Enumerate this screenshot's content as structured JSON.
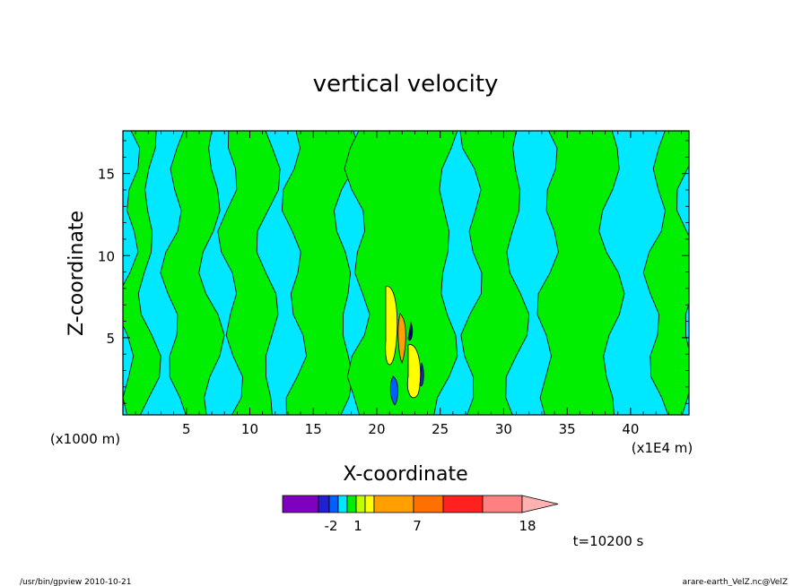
{
  "chart_data": {
    "type": "heatmap",
    "title": "vertical velocity",
    "xlabel": "X-coordinate",
    "ylabel": "Z-coordinate",
    "x_unit_left": "(x1000 m)",
    "x_unit_right": "(x1E4 m)",
    "x_ticks": [
      "5",
      "10",
      "15",
      "20",
      "25",
      "30",
      "35",
      "40"
    ],
    "x_tick_values": [
      5,
      10,
      15,
      20,
      25,
      30,
      35,
      40
    ],
    "y_ticks": [
      "5",
      "10",
      "15"
    ],
    "y_tick_values": [
      5,
      10,
      15
    ],
    "xlim": [
      0,
      44.6
    ],
    "ylim": [
      0.3,
      17.6
    ],
    "background_level_color": "#00e8ff",
    "updraft_color": "#00ee00",
    "updraft_bands": [
      {
        "x0": 0.5,
        "x1": 2.0
      },
      {
        "x0": 4.0,
        "x1": 7.0
      },
      {
        "x0": 8.5,
        "x1": 11.5
      },
      {
        "x0": 13.5,
        "x1": 17.5
      },
      {
        "x0": 18.5,
        "x1": 25.5
      },
      {
        "x0": 27.5,
        "x1": 31.0
      },
      {
        "x0": 33.5,
        "x1": 38.5
      },
      {
        "x0": 42.0,
        "x1": 44.6
      }
    ],
    "colorbar": {
      "colors": [
        "#8000c0",
        "#2020d0",
        "#0060ff",
        "#00e8ff",
        "#00ee00",
        "#c0ff00",
        "#ffff00",
        "#ffa000",
        "#ff7000",
        "#ff2020",
        "#ff8080",
        "#ffb0b0"
      ],
      "labels": [
        "-2",
        "1",
        "7",
        "18"
      ]
    },
    "time_label": "t=10200 s"
  },
  "footer": {
    "left": "/usr/bin/gpview   2010-10-21",
    "right": "arare-earth_VelZ.nc@VelZ"
  }
}
